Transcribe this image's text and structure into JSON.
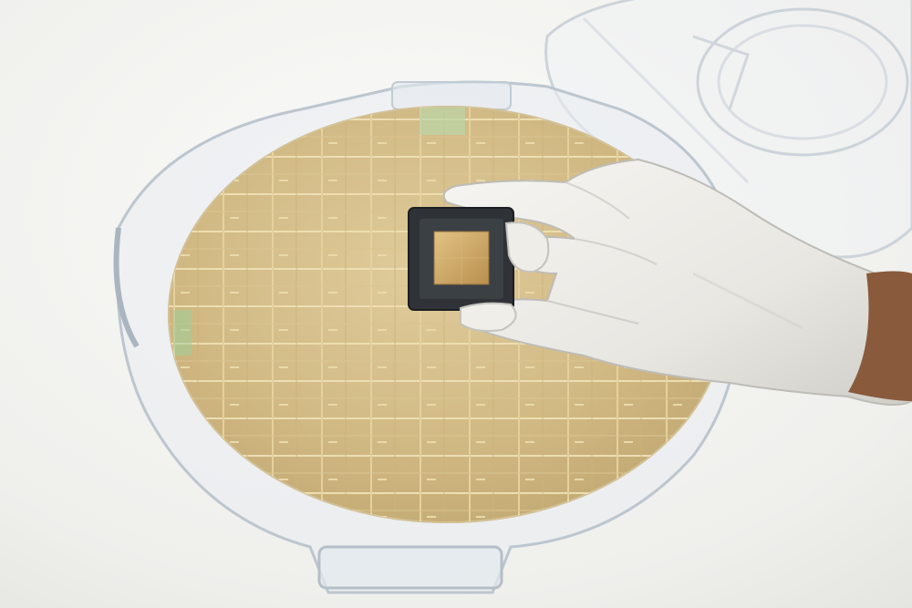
{
  "scene": {
    "subject": "semiconductor-wafer-with-packaged-chip",
    "colors": {
      "background_light": "#f7f7f5",
      "background_shadow": "#e3e3e0",
      "wafer_gold": "#d2bb85",
      "wafer_gold_dark": "#b59c62",
      "die_line": "#e7d6a8",
      "glove": "#ecebe6",
      "glove_shadow": "#c9c8c2",
      "chip_frame": "#2f3337",
      "chip_die": "#caa35e",
      "skin": "#8a5a3c",
      "carrier_plastic": "#d8dde3"
    },
    "icons": [
      "wafer-icon",
      "chip-icon",
      "glove-hand-icon",
      "wafer-carrier-icon"
    ]
  }
}
